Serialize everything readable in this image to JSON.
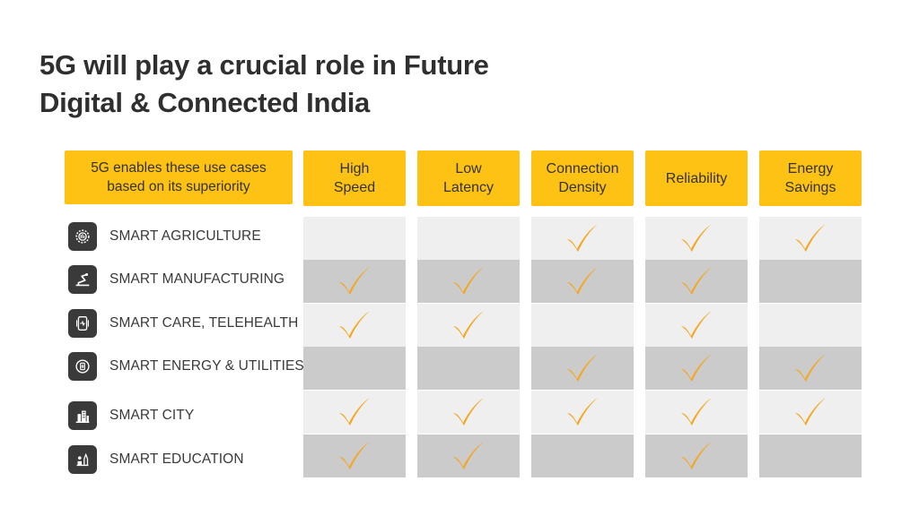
{
  "title": {
    "line1": "5G will play a crucial role in Future",
    "line2": "Digital & Connected India"
  },
  "table": {
    "corner_header": {
      "line1": "5G enables these use cases",
      "line2": "based on its superiority"
    },
    "columns": [
      {
        "line1": "High",
        "line2": "Speed"
      },
      {
        "line1": "Low",
        "line2": "Latency"
      },
      {
        "line1": "Connection",
        "line2": "Density"
      },
      {
        "line1": "Reliability",
        "line2": ""
      },
      {
        "line1": "Energy",
        "line2": "Savings"
      }
    ],
    "rows": [
      {
        "label": "SMART AGRICULTURE",
        "icon": "gear-icon",
        "checks": [
          false,
          false,
          true,
          true,
          true
        ]
      },
      {
        "label": "SMART MANUFACTURING",
        "icon": "robot-arm-icon",
        "checks": [
          true,
          true,
          true,
          true,
          false
        ]
      },
      {
        "label": "SMART CARE, TELEHEALTH",
        "icon": "health-device-icon",
        "checks": [
          true,
          true,
          false,
          true,
          false
        ]
      },
      {
        "label": "SMART ENERGY & UTILITIES",
        "icon": "energy-icon",
        "checks": [
          false,
          false,
          true,
          true,
          true
        ]
      },
      {
        "label": "SMART CITY",
        "icon": "city-icon",
        "checks": [
          true,
          true,
          true,
          true,
          true
        ]
      },
      {
        "label": "SMART EDUCATION",
        "icon": "education-icon",
        "checks": [
          true,
          true,
          false,
          true,
          false
        ]
      }
    ]
  },
  "colors": {
    "header_bg": "#fdc213",
    "check": "#f6a51c",
    "row_light": "#efefef",
    "row_dark": "#cbcbcb",
    "icon_bg": "#3a3a3a"
  }
}
